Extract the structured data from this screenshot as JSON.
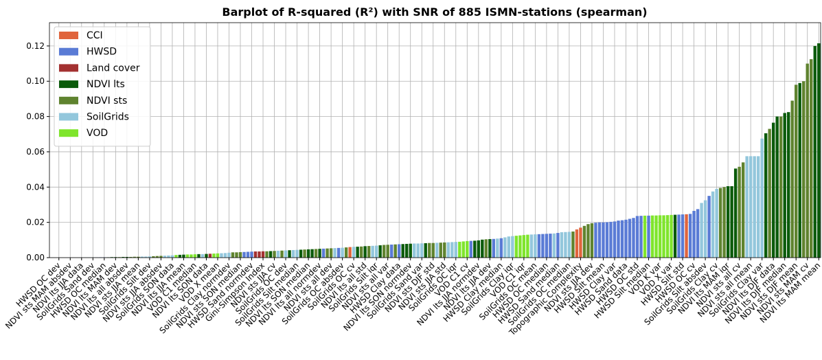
{
  "chart_data": {
    "type": "bar",
    "title": "Barplot of R-squared (R²) with SNR of 885 ISMN-stations (spearman)",
    "categories": [
      null,
      null,
      "HWSD OC dev",
      null,
      null,
      "NDVI sts MAM absdev",
      null,
      null,
      "NDVI lts JJA data",
      null,
      null,
      "SoilGrids Sand dev",
      null,
      null,
      "HWSD OC median",
      null,
      null,
      "NDVI lts MAM dev",
      null,
      null,
      "NDVI lts all absdev",
      null,
      null,
      "NDVI sts JJA mean",
      null,
      null,
      "SoilGrids Silt dev",
      null,
      null,
      "NDVI sts JJA absdev",
      null,
      null,
      "SoilGrids SON data",
      null,
      null,
      "NDVI lts JJA mean",
      null,
      null,
      "VOD C1 median",
      null,
      null,
      "NDVI lts SON data",
      null,
      null,
      "VOD X mean",
      null,
      null,
      "SoilGrids Clay normdev",
      null,
      null,
      "NDVI sts SON median",
      null,
      null,
      "HWSD Sand normdev",
      null,
      null,
      "Gini-Simpson Index",
      null,
      null,
      "NDVI sts JJA cv",
      null,
      null,
      "SoilGrids OC dev",
      null,
      null,
      "SoilGrids Silt median",
      null,
      null,
      "NDVI lts SON median",
      null,
      null,
      "NDVI lts all normdev",
      null,
      null,
      "NDVI sts all dev",
      null,
      null,
      "SoilGrids OC absdev",
      null,
      null,
      "SoilGrids OC cv",
      null,
      null,
      "NDVI lts all std",
      null,
      null,
      "SoilGrids Silt iqr",
      null,
      null,
      "NDVI sts all var",
      null,
      null,
      "HWSD Clay data",
      null,
      null,
      "NDVI lts SON normdev",
      null,
      null,
      "SoilGrids Sand var",
      null,
      null,
      "NDVI sts DJF std",
      null,
      null,
      "NDVI sts JJA std",
      null,
      null,
      "SoilGrids OC iqr",
      null,
      null,
      "VOD C1 cv",
      null,
      null,
      "NDVI lts JJA normdev",
      null,
      null,
      "NDVI lts JJA dev",
      null,
      null,
      "HWSD Clay median",
      null,
      null,
      "SoilGrids Clay iqr",
      null,
      null,
      "VOD C1 iqr",
      null,
      null,
      "SoilGrids OC mean",
      null,
      null,
      "HWSD OC median",
      null,
      null,
      "HWSD Sand median",
      null,
      null,
      "SoilGrids OC median",
      null,
      null,
      "Topographic Complexity",
      null,
      null,
      "NDVI sts JJA dev",
      null,
      null,
      "HWSD Silt mean",
      null,
      null,
      "HWSD Clay var",
      null,
      null,
      "HWSD Sand data",
      null,
      null,
      "HWSD OC std",
      null,
      null,
      "HWSD Silt median",
      null,
      null,
      "VOD K var",
      null,
      null,
      "VOD X var",
      null,
      null,
      "HWSD Silt std",
      null,
      null,
      "HWSD OC cv",
      null,
      null,
      "SoilGrids Silt absdev",
      null,
      null,
      "SoilGrids Clay cv",
      null,
      null,
      "NDVI lts MAM iqr",
      null,
      null,
      "NDVI sts all cv",
      null,
      null,
      "NDVI sts all mean",
      null,
      null,
      "SoilGrids Clay var",
      null,
      null,
      "NDVI lts DJF data",
      null,
      null,
      "NDVI lts DJF median",
      null,
      null,
      "NDVI sts DJF mean",
      null,
      null,
      "NDVI sts MAM cv",
      null,
      null,
      "NDVI lts MAM mean"
    ],
    "values": [
      0,
      0,
      0,
      0,
      0,
      0,
      0,
      0,
      0,
      0.0001,
      0.0001,
      0.0001,
      0.0001,
      0.0002,
      0.0002,
      0.0002,
      0.0003,
      0.0003,
      0.0003,
      0.0004,
      0.0004,
      0.0004,
      0.0005,
      0.0005,
      0.0006,
      0.0006,
      0.0007,
      0.0008,
      0.0009,
      0.001,
      0.0011,
      0.0012,
      0.0013,
      0.0015,
      0.0016,
      0.0017,
      0.0018,
      0.0018,
      0.0019,
      0.002,
      0.002,
      0.0021,
      0.0022,
      0.0023,
      0.0024,
      0.0025,
      0.0026,
      0.0028,
      0.003,
      0.003,
      0.0031,
      0.0032,
      0.0033,
      0.0034,
      0.0035,
      0.0035,
      0.0036,
      0.0036,
      0.0037,
      0.0038,
      0.0039,
      0.004,
      0.0041,
      0.0042,
      0.0043,
      0.0044,
      0.0045,
      0.0046,
      0.0047,
      0.0048,
      0.0049,
      0.005,
      0.0051,
      0.0052,
      0.0053,
      0.0054,
      0.0055,
      0.0056,
      0.0058,
      0.006,
      0.0061,
      0.0062,
      0.0063,
      0.0065,
      0.0066,
      0.0067,
      0.0068,
      0.007,
      0.0072,
      0.0073,
      0.0074,
      0.0075,
      0.0076,
      0.0077,
      0.0078,
      0.0079,
      0.008,
      0.008,
      0.0081,
      0.0082,
      0.0083,
      0.0083,
      0.0084,
      0.0085,
      0.0086,
      0.0087,
      0.0088,
      0.0089,
      0.009,
      0.0092,
      0.0094,
      0.0095,
      0.0096,
      0.0098,
      0.0102,
      0.0104,
      0.0105,
      0.0106,
      0.0108,
      0.011,
      0.0115,
      0.012,
      0.0122,
      0.0124,
      0.0126,
      0.0128,
      0.013,
      0.0131,
      0.0132,
      0.0133,
      0.0134,
      0.0135,
      0.0136,
      0.0137,
      0.014,
      0.0144,
      0.0145,
      0.0146,
      0.0148,
      0.016,
      0.017,
      0.018,
      0.019,
      0.0195,
      0.0198,
      0.02,
      0.02,
      0.0201,
      0.0203,
      0.0205,
      0.021,
      0.0212,
      0.0215,
      0.022,
      0.0225,
      0.0236,
      0.0237,
      0.0238,
      0.0238,
      0.0239,
      0.0239,
      0.024,
      0.024,
      0.0241,
      0.0242,
      0.0243,
      0.0244,
      0.0245,
      0.0246,
      0.0248,
      0.0265,
      0.0275,
      0.031,
      0.0325,
      0.035,
      0.0375,
      0.039,
      0.0395,
      0.04,
      0.0405,
      0.0405,
      0.0505,
      0.0515,
      0.054,
      0.0575,
      0.0575,
      0.0575,
      0.0575,
      0.0675,
      0.0705,
      0.073,
      0.0765,
      0.08,
      0.08,
      0.082,
      0.0825,
      0.089,
      0.098,
      0.099,
      0.1,
      0.11,
      0.1125,
      0.12,
      0.1215
    ],
    "colors": [
      "#5a7bd5",
      "#5a7bd5",
      "#5a7bd5",
      "#5f832f",
      "#5f832f",
      "#5f832f",
      "#0b5b0b",
      "#0b5b0b",
      "#0b5b0b",
      "#93c7dc",
      "#93c7dc",
      "#93c7dc",
      "#5a7bd5",
      "#5a7bd5",
      "#5a7bd5",
      "#0b5b0b",
      "#0b5b0b",
      "#0b5b0b",
      "#5f832f",
      "#0b5b0b",
      "#0b5b0b",
      "#5f832f",
      "#5f832f",
      "#5f832f",
      "#93c7dc",
      "#93c7dc",
      "#93c7dc",
      "#5f832f",
      "#5f832f",
      "#5f832f",
      "#93c7dc",
      "#93c7dc",
      "#93c7dc",
      "#7fe52c",
      "#0b5b0b",
      "#0b5b0b",
      "#7fe52c",
      "#7fe52c",
      "#7fe52c",
      "#0b5b0b",
      "#93c7dc",
      "#0b5b0b",
      "#a33131",
      "#7fe52c",
      "#7fe52c",
      "#93c7dc",
      "#93c7dc",
      "#93c7dc",
      "#5f832f",
      "#5f832f",
      "#5f832f",
      "#5a7bd5",
      "#5a7bd5",
      "#5a7bd5",
      "#a33131",
      "#a33131",
      "#a33131",
      "#5f832f",
      "#0b5b0b",
      "#5f832f",
      "#93c7dc",
      "#5f832f",
      "#93c7dc",
      "#0b5b0b",
      "#93c7dc",
      "#93c7dc",
      "#0b5b0b",
      "#5f832f",
      "#0b5b0b",
      "#0b5b0b",
      "#5f832f",
      "#0b5b0b",
      "#5a7bd5",
      "#5f832f",
      "#5f832f",
      "#93c7dc",
      "#5a7bd5",
      "#93c7dc",
      "#5f832f",
      "#e0643c",
      "#93c7dc",
      "#0b5b0b",
      "#5f832f",
      "#0b5b0b",
      "#5f832f",
      "#93c7dc",
      "#93c7dc",
      "#0b5b0b",
      "#5f832f",
      "#5f832f",
      "#5a7bd5",
      "#5f832f",
      "#5a7bd5",
      "#0b5b0b",
      "#0b5b0b",
      "#0b5b0b",
      "#93c7dc",
      "#93c7dc",
      "#93c7dc",
      "#0b5b0b",
      "#5f832f",
      "#5f832f",
      "#93c7dc",
      "#5f832f",
      "#5f832f",
      "#93c7dc",
      "#93c7dc",
      "#93c7dc",
      "#7fe52c",
      "#7fe52c",
      "#7fe52c",
      "#5a7bd5",
      "#0b5b0b",
      "#0b5b0b",
      "#0b5b0b",
      "#5f832f",
      "#0b5b0b",
      "#5a7bd5",
      "#93c7dc",
      "#5a7bd5",
      "#93c7dc",
      "#93c7dc",
      "#93c7dc",
      "#7fe52c",
      "#7fe52c",
      "#7fe52c",
      "#7fe52c",
      "#93c7dc",
      "#93c7dc",
      "#5a7bd5",
      "#5a7bd5",
      "#5a7bd5",
      "#5a7bd5",
      "#93c7dc",
      "#5a7bd5",
      "#93c7dc",
      "#93c7dc",
      "#93c7dc",
      "#5f832f",
      "#e0643c",
      "#e0643c",
      "#5f832f",
      "#5f832f",
      "#5f832f",
      "#5a7bd5",
      "#5a7bd5",
      "#5a7bd5",
      "#5a7bd5",
      "#5a7bd5",
      "#5a7bd5",
      "#5a7bd5",
      "#5a7bd5",
      "#5a7bd5",
      "#5a7bd5",
      "#5a7bd5",
      "#5a7bd5",
      "#5a7bd5",
      "#7fe52c",
      "#5a7bd5",
      "#7fe52c",
      "#7fe52c",
      "#7fe52c",
      "#7fe52c",
      "#7fe52c",
      "#7fe52c",
      "#0b5b0b",
      "#5a7bd5",
      "#5a7bd5",
      "#e0643c",
      "#5a7bd5",
      "#5a7bd5",
      "#5a7bd5",
      "#93c7dc",
      "#93c7dc",
      "#5a7bd5",
      "#93c7dc",
      "#93c7dc",
      "#5f832f",
      "#5f832f",
      "#0b5b0b",
      "#0b5b0b",
      "#0b5b0b",
      "#5f832f",
      "#5f832f",
      "#93c7dc",
      "#93c7dc",
      "#93c7dc",
      "#93c7dc",
      "#93c7dc",
      "#0b5b0b",
      "#5f832f",
      "#0b5b0b",
      "#0b5b0b",
      "#5f832f",
      "#0b5b0b",
      "#0b5b0b",
      "#5f832f",
      "#5f832f",
      "#0b5b0b",
      "#5f832f",
      "#5f832f",
      "#5f832f",
      "#0b5b0b",
      "#0b5b0b"
    ],
    "legend": [
      {
        "name": "CCI",
        "color": "#e0643c"
      },
      {
        "name": "HWSD",
        "color": "#5a7bd5"
      },
      {
        "name": "Land cover",
        "color": "#a33131"
      },
      {
        "name": "NDVI lts",
        "color": "#0b5b0b"
      },
      {
        "name": "NDVI sts",
        "color": "#5f832f"
      },
      {
        "name": "SoilGrids",
        "color": "#93c7dc"
      },
      {
        "name": "VOD",
        "color": "#7fe52c"
      }
    ],
    "ylim": [
      0,
      0.1332
    ],
    "yticks": [
      {
        "value": 0,
        "label": "0.00"
      },
      0.02,
      0.04,
      0.06,
      0.08,
      {
        "value": 0.1,
        "label": "0.10"
      },
      0.12
    ],
    "grid": true
  }
}
